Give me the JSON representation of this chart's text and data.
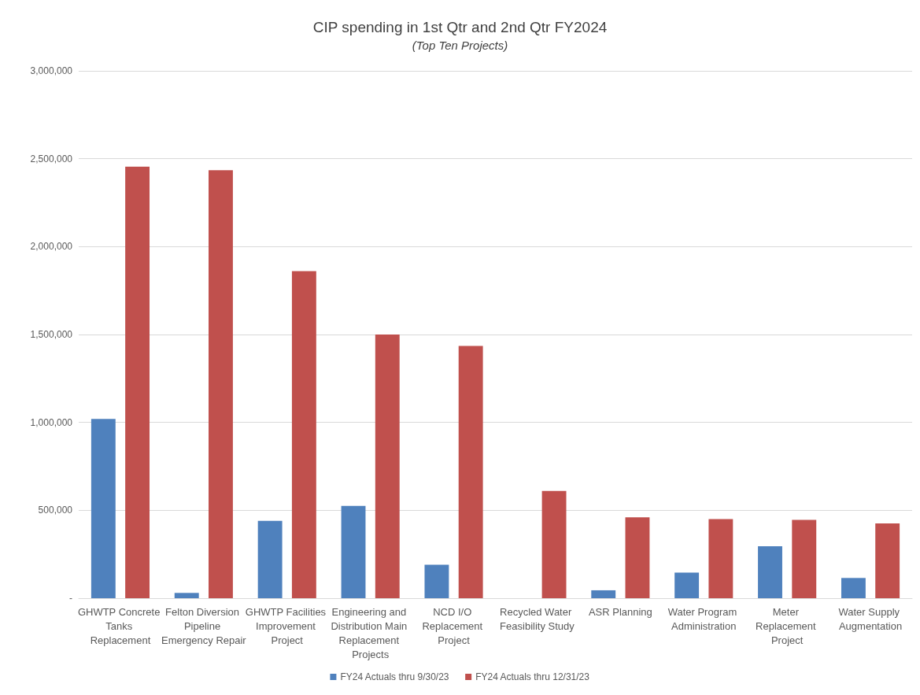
{
  "chart_data": {
    "type": "bar",
    "title": "CIP spending in 1st Qtr and 2nd Qtr FY2024",
    "subtitle": "(Top Ten Projects)",
    "categories": [
      "GHWTP Concrete Tanks Replacement",
      "Felton Diversion Pipeline Emergency Repair",
      "GHWTP Facilities Improvement Project",
      "Engineering and Distribution Main Replacement Projects",
      "NCD I/O Replacement Project",
      "Recycled Water Feasibility Study",
      "ASR Planning",
      "Water Program Administration",
      "Meter Replacement Project",
      "Water Supply Augmentation"
    ],
    "series": [
      {
        "name": "FY24 Actuals thru 9/30/23",
        "color": "#4f81bd",
        "values": [
          1020000,
          30000,
          440000,
          525000,
          190000,
          0,
          45000,
          145000,
          295000,
          115000
        ]
      },
      {
        "name": "FY24 Actuals thru 12/31/23",
        "color": "#c0504d",
        "values": [
          2455000,
          2435000,
          1860000,
          1500000,
          1435000,
          610000,
          460000,
          450000,
          445000,
          425000
        ]
      }
    ],
    "ylim": [
      0,
      3000000
    ],
    "yticks": [
      {
        "value": 0,
        "label": "-"
      },
      {
        "value": 500000,
        "label": "500,000"
      },
      {
        "value": 1000000,
        "label": "1,000,000"
      },
      {
        "value": 1500000,
        "label": "1,500,000"
      },
      {
        "value": 2000000,
        "label": "2,000,000"
      },
      {
        "value": 2500000,
        "label": "2,500,000"
      },
      {
        "value": 3000000,
        "label": "3,000,000"
      }
    ],
    "grid": "y",
    "legend": "bottom"
  }
}
